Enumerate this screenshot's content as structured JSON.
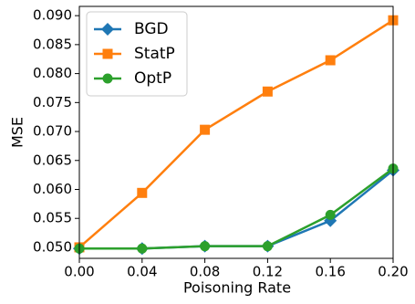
{
  "chart_data": {
    "type": "line",
    "xlabel": "Poisoning Rate",
    "ylabel": "MSE",
    "x": [
      0,
      0.04,
      0.08,
      0.12,
      0.16,
      0.2
    ],
    "series": [
      {
        "name": "BGD",
        "color": "#1f77b4",
        "marker": "diamond",
        "values": [
          0.0498,
          0.0498,
          0.0502,
          0.0502,
          0.0546,
          0.0633
        ]
      },
      {
        "name": "StatP",
        "color": "#ff7f0e",
        "marker": "square",
        "values": [
          0.05,
          0.0594,
          0.0703,
          0.0769,
          0.0823,
          0.0892
        ]
      },
      {
        "name": "OptP",
        "color": "#2ca02c",
        "marker": "circle",
        "values": [
          0.0498,
          0.0498,
          0.0502,
          0.0502,
          0.0556,
          0.0636
        ]
      }
    ],
    "xlim": [
      0,
      0.2
    ],
    "xticks": [
      {
        "value": 0,
        "label": "0.00"
      },
      0.04,
      0.08,
      0.12,
      0.16,
      {
        "value": 0.2,
        "label": "0.20"
      }
    ],
    "ylim": [
      0.0481,
      0.0916
    ],
    "yticks": [
      {
        "value": 0.05,
        "label": "0.050"
      },
      {
        "value": 0.055,
        "label": "0.055"
      },
      {
        "value": 0.06,
        "label": "0.060"
      },
      {
        "value": 0.065,
        "label": "0.065"
      },
      {
        "value": 0.07,
        "label": "0.070"
      },
      {
        "value": 0.075,
        "label": "0.075"
      },
      {
        "value": 0.08,
        "label": "0.080"
      },
      {
        "value": 0.085,
        "label": "0.085"
      },
      {
        "value": 0.09,
        "label": "0.090"
      }
    ],
    "legend": "upper left"
  }
}
